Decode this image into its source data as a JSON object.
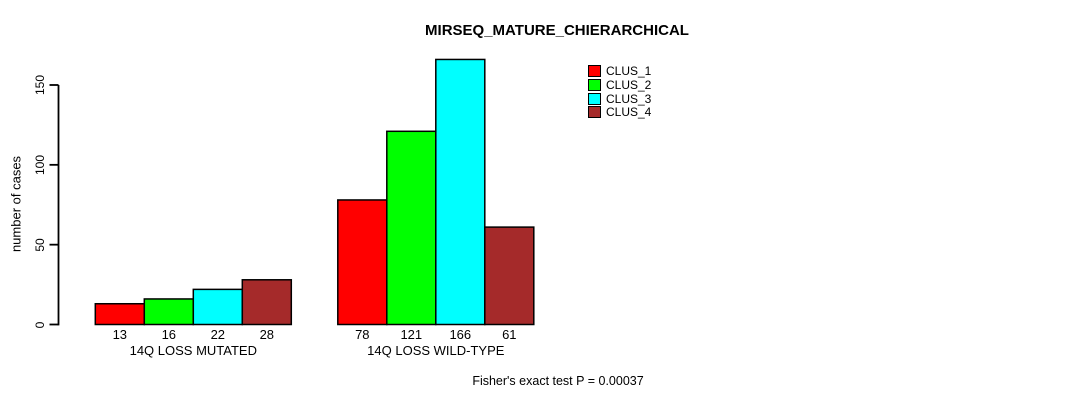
{
  "chart_data": {
    "type": "bar",
    "title": "MIRSEQ_MATURE_CHIERARCHICAL",
    "ylabel": "number of cases",
    "xlabel": "",
    "categories": [
      "14Q LOSS MUTATED",
      "14Q LOSS WILD-TYPE"
    ],
    "series": [
      {
        "name": "CLUS_1",
        "color": "#FF0000",
        "values": [
          13,
          78
        ]
      },
      {
        "name": "CLUS_2",
        "color": "#00FF00",
        "values": [
          16,
          121
        ]
      },
      {
        "name": "CLUS_3",
        "color": "#00FFFF",
        "values": [
          22,
          166
        ]
      },
      {
        "name": "CLUS_4",
        "color": "#A52A2A",
        "values": [
          28,
          61
        ]
      }
    ],
    "yticks": [
      0,
      50,
      100,
      150
    ],
    "ylim": [
      0,
      170
    ],
    "grid": false,
    "bar_value_labels": true,
    "legend_position": "top-right",
    "footer": "Fisher's exact test P = 0.00037",
    "background_color": "#FFFFFF",
    "axis_color": "#000000"
  }
}
